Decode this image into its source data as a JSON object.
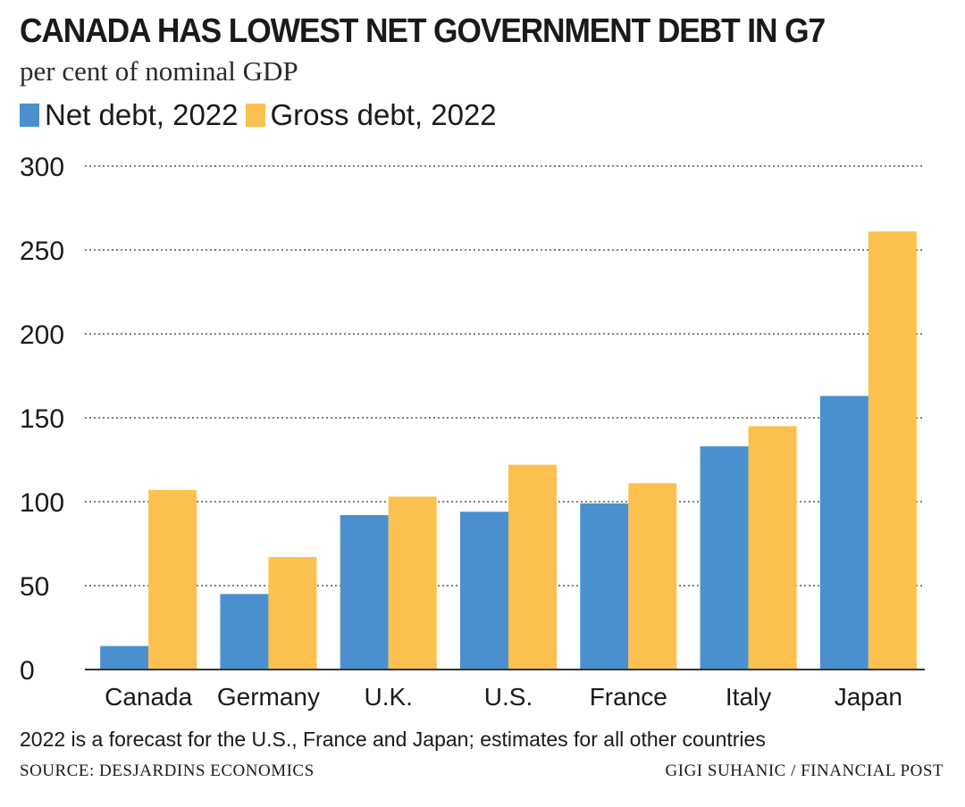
{
  "title": "CANADA HAS LOWEST NET GOVERNMENT DEBT IN G7",
  "subtitle": "per cent of nominal GDP",
  "colors": {
    "net": "#4a90cf",
    "gross": "#fbc04e",
    "grid": "#555555",
    "text": "#1a1a1a"
  },
  "chart_data": {
    "type": "bar",
    "categories": [
      "Canada",
      "Germany",
      "U.K.",
      "U.S.",
      "France",
      "Italy",
      "Japan"
    ],
    "series": [
      {
        "name": "Net debt, 2022",
        "values": [
          14,
          45,
          92,
          94,
          99,
          133,
          163
        ]
      },
      {
        "name": "Gross debt, 2022",
        "values": [
          107,
          67,
          103,
          122,
          111,
          145,
          261
        ]
      }
    ],
    "ylim": [
      0,
      300
    ],
    "yticks": [
      0,
      50,
      100,
      150,
      200,
      250,
      300
    ],
    "grid": true,
    "legend": "top-left"
  },
  "footnote": "2022 is a forecast for the U.S., France and Japan; estimates for all other countries",
  "source": "SOURCE: DESJARDINS ECONOMICS",
  "credit": "GIGI SUHANIC / FINANCIAL POST"
}
